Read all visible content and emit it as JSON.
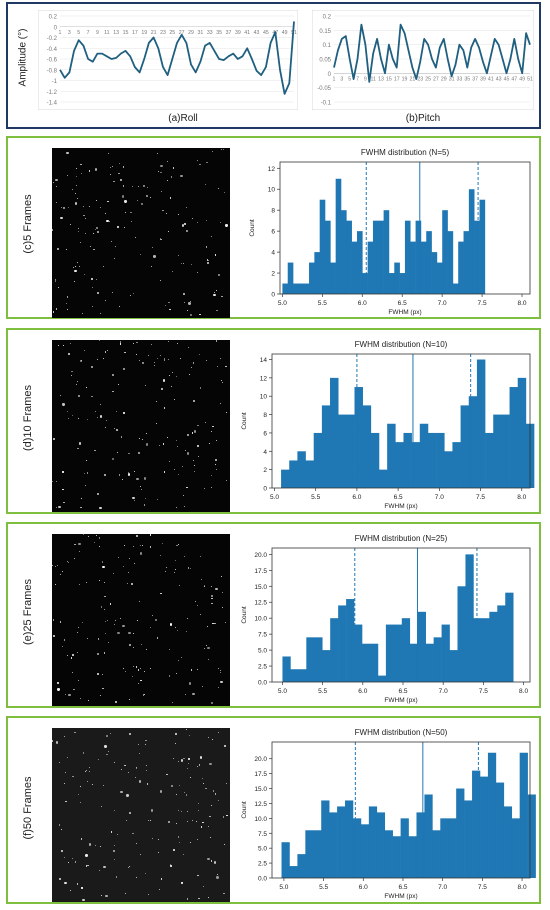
{
  "top": {
    "ylabel": "Amplitude (°)",
    "roll_caption": "(a)Roll",
    "pitch_caption": "(b)Pitch"
  },
  "panels": [
    {
      "label": "(c)5  Frames"
    },
    {
      "label": "(d)10  Frames"
    },
    {
      "label": "(e)25  Frames"
    },
    {
      "label": "(f)50  Frames"
    }
  ],
  "colors": {
    "bar": "#1f77b4",
    "line": "#1f5f80",
    "panel_border": "#7fbf3f",
    "top_border": "#1f3864"
  },
  "chart_data": [
    {
      "type": "line",
      "title": "",
      "caption": "(a)Roll",
      "ylabel": "Amplitude (°)",
      "x_ticks": [
        "1",
        "3",
        "5",
        "7",
        "9",
        "11",
        "13",
        "15",
        "17",
        "19",
        "21",
        "23",
        "25",
        "27",
        "29",
        "31",
        "33",
        "35",
        "37",
        "39",
        "41",
        "43",
        "45",
        "47",
        "49",
        "51"
      ],
      "y_ticks": [
        "0.2",
        "0",
        "-0.2",
        "-0.4",
        "-0.6",
        "-0.8",
        "-1",
        "-1.2",
        "-1.4"
      ],
      "ylim": [
        -1.4,
        0.2
      ],
      "x": [
        1,
        2,
        3,
        4,
        5,
        6,
        7,
        8,
        9,
        10,
        11,
        12,
        13,
        14,
        15,
        16,
        17,
        18,
        19,
        20,
        21,
        22,
        23,
        24,
        25,
        26,
        27,
        28,
        29,
        30,
        31,
        32,
        33,
        34,
        35,
        36,
        37,
        38,
        39,
        40,
        41,
        42,
        43,
        44,
        45,
        46,
        47,
        48,
        49,
        50,
        51
      ],
      "values": [
        -0.8,
        -0.95,
        -0.85,
        -0.45,
        -0.25,
        -0.35,
        -0.6,
        -0.65,
        -0.5,
        -0.5,
        -0.55,
        -0.6,
        -0.58,
        -0.5,
        -0.45,
        -0.55,
        -0.75,
        -0.85,
        -0.6,
        -0.3,
        -0.2,
        -0.4,
        -0.75,
        -0.9,
        -0.6,
        -0.3,
        -0.15,
        -0.3,
        -0.7,
        -0.85,
        -0.65,
        -0.35,
        -0.3,
        -0.45,
        -0.6,
        -0.62,
        -0.55,
        -0.5,
        -0.6,
        -0.55,
        -0.4,
        -0.6,
        -0.82,
        -0.9,
        -0.75,
        -0.3,
        -0.1,
        -0.8,
        -1.25,
        -1.05,
        0.1
      ]
    },
    {
      "type": "line",
      "title": "",
      "caption": "(b)Pitch",
      "x_ticks": [
        "1",
        "3",
        "5",
        "7",
        "9",
        "11",
        "13",
        "15",
        "17",
        "19",
        "21",
        "23",
        "25",
        "27",
        "29",
        "31",
        "33",
        "35",
        "37",
        "39",
        "41",
        "43",
        "45",
        "47",
        "49",
        "51"
      ],
      "y_ticks": [
        "0.2",
        "0.15",
        "0.1",
        "0.05",
        "0",
        "-0.05",
        "-0.1"
      ],
      "ylim": [
        -0.1,
        0.2
      ],
      "x": [
        1,
        2,
        3,
        4,
        5,
        6,
        7,
        8,
        9,
        10,
        11,
        12,
        13,
        14,
        15,
        16,
        17,
        18,
        19,
        20,
        21,
        22,
        23,
        24,
        25,
        26,
        27,
        28,
        29,
        30,
        31,
        32,
        33,
        34,
        35,
        36,
        37,
        38,
        39,
        40,
        41,
        42,
        43,
        44,
        45,
        46,
        47,
        48,
        49,
        50,
        51
      ],
      "values": [
        0.02,
        0.08,
        0.12,
        0.13,
        0.05,
        -0.02,
        0.05,
        0.17,
        0.1,
        -0.03,
        0.07,
        0.12,
        0.05,
        0.0,
        0.1,
        0.05,
        0.02,
        0.17,
        0.14,
        0.08,
        0.02,
        -0.02,
        0.04,
        0.12,
        0.1,
        0.05,
        0.02,
        0.09,
        0.12,
        0.05,
        -0.01,
        0.03,
        0.1,
        0.08,
        0.02,
        0.09,
        0.12,
        0.09,
        0.04,
        0.0,
        0.06,
        0.12,
        0.1,
        0.05,
        0.0,
        0.05,
        0.12,
        0.05,
        0.0,
        0.14,
        0.1
      ]
    },
    {
      "type": "bar",
      "title": "FWHM distribution (N=5)",
      "xlabel": "FWHM (px)",
      "ylabel": "Count",
      "bin_start": 5.0,
      "bin_width": 0.0667,
      "xlim": [
        4.97,
        8.1
      ],
      "ylim": [
        0,
        12.6
      ],
      "x_ticks": [
        5.0,
        5.5,
        6.0,
        6.5,
        7.0,
        7.5,
        8.0
      ],
      "y_ticks": [
        0,
        2,
        4,
        6,
        8,
        10,
        12
      ],
      "values": [
        1,
        3,
        1,
        1,
        1,
        3,
        4,
        9,
        7,
        3,
        11,
        8,
        7,
        5,
        6,
        2,
        5,
        7,
        7,
        8,
        2,
        3,
        2,
        7,
        5,
        7,
        5,
        6,
        4,
        3,
        8,
        6,
        1,
        5,
        6,
        10,
        7,
        9
      ],
      "mean": 6.72,
      "std_low": 6.05,
      "std_high": 7.45
    },
    {
      "type": "bar",
      "title": "FWHM distribution (N=10)",
      "xlabel": "FWHM (px)",
      "ylabel": "Count",
      "bin_start": 5.08,
      "bin_width": 0.099,
      "xlim": [
        4.97,
        8.1
      ],
      "ylim": [
        0,
        14.6
      ],
      "x_ticks": [
        5.0,
        5.5,
        6.0,
        6.5,
        7.0,
        7.5,
        8.0
      ],
      "y_ticks": [
        0,
        2,
        4,
        6,
        8,
        10,
        12,
        14
      ],
      "values": [
        2,
        3,
        4,
        3,
        6,
        9,
        12,
        8,
        8,
        11,
        9,
        6,
        2,
        7,
        5,
        6,
        5,
        7,
        6,
        6,
        4,
        5,
        9,
        10,
        14,
        6,
        8,
        8,
        11,
        12,
        7
      ],
      "mean": 6.68,
      "std_low": 6.0,
      "std_high": 7.38
    },
    {
      "type": "bar",
      "title": "FWHM distribution (N=25)",
      "xlabel": "FWHM (px)",
      "ylabel": "Count",
      "bin_start": 5.0,
      "bin_width": 0.099,
      "xlim": [
        4.87,
        8.08
      ],
      "ylim": [
        0,
        21
      ],
      "x_ticks": [
        5.0,
        5.5,
        6.0,
        6.5,
        7.0,
        7.5,
        8.0
      ],
      "y_ticks": [
        0.0,
        2.5,
        5.0,
        7.5,
        10.0,
        12.5,
        15.0,
        17.5,
        20.0
      ],
      "y_tick_labels": [
        "0.0",
        "2.5",
        "5.0",
        "7.5",
        "10.0",
        "12.5",
        "15.0",
        "17.5",
        "20.0"
      ],
      "values": [
        4,
        2,
        2,
        7,
        7,
        5,
        10,
        12,
        13,
        9,
        6,
        6,
        1,
        9,
        9,
        10,
        6,
        11,
        6,
        7,
        9,
        5,
        15,
        20,
        10,
        10,
        11,
        12,
        14
      ],
      "mean": 6.68,
      "std_low": 5.9,
      "std_high": 7.42
    },
    {
      "type": "bar",
      "title": "FWHM distribution (N=50)",
      "xlabel": "FWHM (px)",
      "ylabel": "Count",
      "bin_start": 4.97,
      "bin_width": 0.1,
      "xlim": [
        4.85,
        8.1
      ],
      "ylim": [
        0,
        22.8
      ],
      "x_ticks": [
        5.0,
        5.5,
        6.0,
        6.5,
        7.0,
        7.5,
        8.0
      ],
      "y_ticks": [
        0.0,
        2.5,
        5.0,
        7.5,
        10.0,
        12.5,
        15.0,
        17.5,
        20.0
      ],
      "y_tick_labels": [
        "0.0",
        "2.5",
        "5.0",
        "7.5",
        "10.0",
        "12.5",
        "15.0",
        "17.5",
        "20.0"
      ],
      "values": [
        6,
        2,
        4,
        8,
        8,
        13,
        11,
        12,
        13,
        10,
        9,
        12,
        11,
        8,
        7,
        10,
        7,
        11,
        14,
        8,
        10,
        10,
        15,
        13,
        18,
        17,
        21,
        16,
        12,
        10,
        21,
        14
      ],
      "mean": 6.75,
      "std_low": 5.9,
      "std_high": 7.45
    }
  ]
}
